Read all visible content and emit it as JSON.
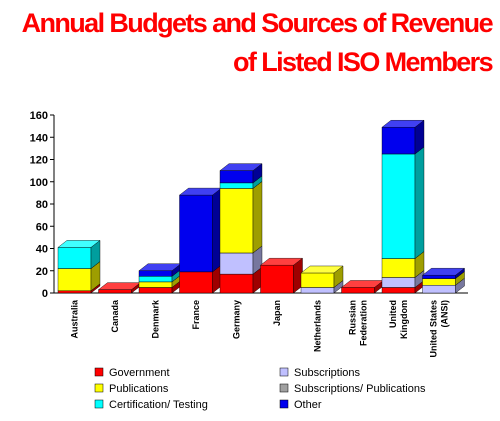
{
  "title_line1": "Annual Budgets and Sources of Revenue",
  "title_line2": "of Listed ISO Members",
  "chart_data": {
    "type": "bar",
    "stacked": true,
    "title": "Annual Budgets and Sources of Revenue of Listed ISO Members",
    "categories": [
      "Australia",
      "Canada",
      "Denmark",
      "France",
      "Germany",
      "Japan",
      "Netherlands",
      "Russian Federation",
      "United Kingdom",
      "United States (ANSI)"
    ],
    "ylim": [
      0,
      160
    ],
    "yticks": [
      0,
      20,
      40,
      60,
      80,
      100,
      120,
      140,
      160
    ],
    "grid": false,
    "legend_position": "bottom",
    "series": [
      {
        "name": "Government",
        "color": "#ff0000",
        "values": [
          2,
          3,
          5,
          19,
          17,
          25,
          0,
          5,
          5,
          0
        ]
      },
      {
        "name": "Subscriptions",
        "color": "#c0c0ff",
        "values": [
          0,
          0,
          0,
          0,
          19,
          0,
          5,
          0,
          9,
          7
        ]
      },
      {
        "name": "Publications",
        "color": "#ffff00",
        "values": [
          20,
          0,
          5,
          0,
          58,
          0,
          13,
          0,
          17,
          6
        ]
      },
      {
        "name": "Subscriptions/ Publications",
        "color": "#a0a0a0",
        "values": [
          0,
          0,
          0,
          0,
          0,
          0,
          0,
          0,
          0,
          0
        ]
      },
      {
        "name": "Certification/ Testing",
        "color": "#00ffff",
        "values": [
          19,
          0,
          5,
          0,
          5,
          0,
          0,
          0,
          94,
          0
        ]
      },
      {
        "name": "Other",
        "color": "#0000ee",
        "values": [
          0,
          0,
          5,
          69,
          11,
          0,
          0,
          0,
          24,
          3
        ]
      }
    ]
  }
}
